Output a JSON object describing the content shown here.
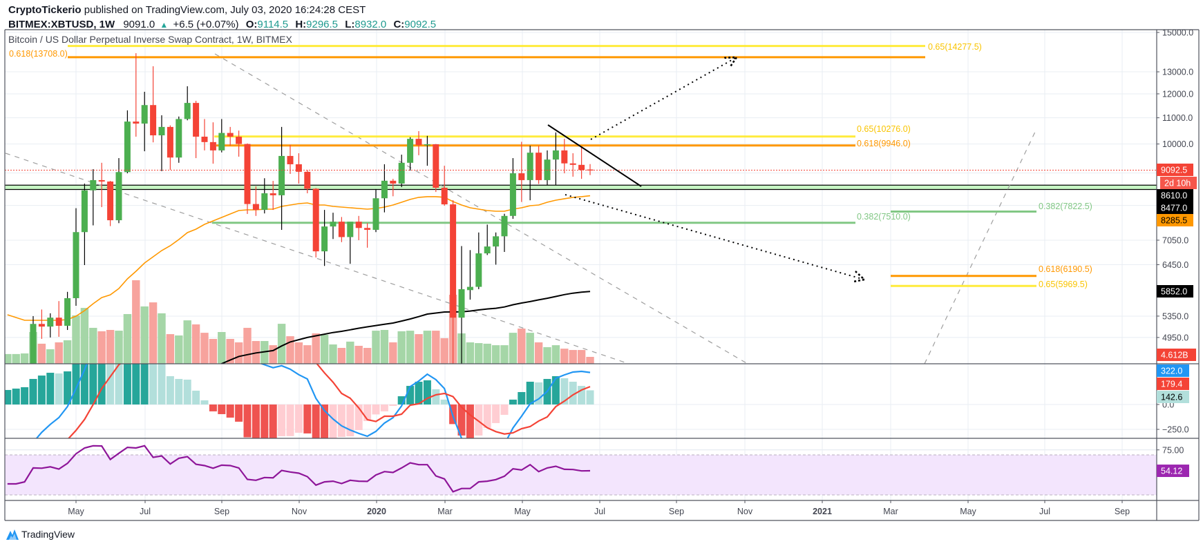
{
  "header": {
    "publisher": "CryptoTickerio",
    "published_text": "published on TradingView.com, July 03, 2020 16:24:28 CEST",
    "symbol": "BITMEX:XBTUSD, 1W",
    "last": "9091.0",
    "change": "+6.5 (+0.07%)",
    "o_label": "O:",
    "o": "9114.5",
    "h_label": "H:",
    "h": "9296.5",
    "l_label": "L:",
    "l": "8932.0",
    "c_label": "C:",
    "c": "9092.5"
  },
  "chart_title": "Bitcoin / US Dollar Perpetual Inverse Swap Contract, 1W, BITMEX",
  "footer": {
    "logo_text": "TradingView"
  },
  "colors": {
    "up": "#4caf50",
    "down": "#f44336",
    "vol_up": "#a5d6a7",
    "vol_down": "#f7a39d",
    "fib_yellow": "#ffeb3b",
    "fib_orange": "#ff9800",
    "fib_green": "#81c784",
    "zone_fill": "#c8f7c5",
    "ma_orange": "#ff9800",
    "ma_black": "#000000",
    "macd": "#2196f3",
    "signal": "#f44336",
    "hist_up_strong": "#26a69a",
    "hist_up_weak": "#b2dfdb",
    "hist_down_strong": "#ef5350",
    "hist_down_weak": "#ffcdd2",
    "rsi": "#8e1599",
    "rsi_band": "#f3e5fd"
  },
  "chart_data": {
    "type": "candlestick",
    "title": "Bitcoin / US Dollar Perpetual Inverse Swap Contract, 1W, BITMEX",
    "interval": "1W",
    "price_scale": "log",
    "ylim": [
      4500,
      15150
    ],
    "price_ticks": [
      "15000.0",
      "13000.0",
      "12000.0",
      "11000.0",
      "10000.0",
      "7050.0",
      "6450.0",
      "5350.0",
      "4950.0"
    ],
    "time_ticks": [
      "May",
      "Jul",
      "Sep",
      "Nov",
      "2020",
      "Mar",
      "May",
      "Jul",
      "Sep",
      "Nov",
      "2021",
      "Mar",
      "May",
      "Jul",
      "Sep"
    ],
    "candles_ohlc": [
      [
        3900,
        4000,
        3850,
        3970
      ],
      [
        3970,
        4050,
        3900,
        4010
      ],
      [
        4010,
        4160,
        3960,
        4150
      ],
      [
        4150,
        5350,
        4100,
        5200
      ],
      [
        5200,
        5480,
        4925,
        5150
      ],
      [
        5150,
        5405,
        4950,
        5320
      ],
      [
        5320,
        5650,
        4962,
        5165
      ],
      [
        5165,
        5843,
        5087,
        5710
      ],
      [
        5710,
        7920,
        5554,
        7260
      ],
      [
        7260,
        8660,
        6440,
        8450
      ],
      [
        8450,
        9126,
        7440,
        8770
      ],
      [
        8770,
        9340,
        7950,
        8725
      ],
      [
        8725,
        8745,
        7420,
        7580
      ],
      [
        7580,
        9500,
        7500,
        9030
      ],
      [
        9030,
        11300,
        8990,
        10850
      ],
      [
        10850,
        13910,
        10270,
        10770
      ],
      [
        10770,
        12090,
        9740,
        11520
      ],
      [
        11520,
        13265,
        10060,
        10320
      ],
      [
        10320,
        11100,
        9060,
        10640
      ],
      [
        10640,
        10700,
        9105,
        9520
      ],
      [
        9520,
        11050,
        9340,
        10950
      ],
      [
        10950,
        12335,
        10900,
        11610
      ],
      [
        11610,
        11700,
        9500,
        10270
      ],
      [
        10270,
        10950,
        9770,
        10070
      ],
      [
        10070,
        10820,
        9310,
        9770
      ],
      [
        9770,
        10950,
        9700,
        10410
      ],
      [
        10410,
        10640,
        9940,
        10270
      ],
      [
        10270,
        10500,
        9550,
        10000
      ],
      [
        10000,
        10020,
        7755,
        8040
      ],
      [
        8040,
        8572,
        7700,
        7870
      ],
      [
        7870,
        8830,
        7770,
        8360
      ],
      [
        8360,
        8745,
        7870,
        8300
      ],
      [
        8300,
        10640,
        7320,
        9575
      ],
      [
        9575,
        9970,
        8970,
        9290
      ],
      [
        9290,
        9670,
        8660,
        9040
      ],
      [
        9040,
        9105,
        8360,
        8500
      ],
      [
        8500,
        8520,
        6620,
        6770
      ],
      [
        6770,
        7870,
        6420,
        7410
      ],
      [
        7410,
        7790,
        7080,
        7540
      ],
      [
        7540,
        7670,
        7000,
        7130
      ],
      [
        7130,
        7520,
        6470,
        7540
      ],
      [
        7540,
        7700,
        7050,
        7370
      ],
      [
        7370,
        7500,
        6860,
        7320
      ],
      [
        7320,
        8490,
        7260,
        8210
      ],
      [
        8210,
        9290,
        7800,
        8750
      ],
      [
        8750,
        8810,
        8270,
        8660
      ],
      [
        8660,
        9620,
        8550,
        9340
      ],
      [
        9340,
        10250,
        9080,
        10190
      ],
      [
        10190,
        10480,
        9600,
        9960
      ],
      [
        9960,
        10300,
        9240,
        9990
      ],
      [
        9990,
        10000,
        8400,
        8530
      ],
      [
        8530,
        9240,
        7990,
        8030
      ],
      [
        8030,
        8150,
        3600,
        5320
      ],
      [
        5320,
        6900,
        4400,
        5900
      ],
      [
        5880,
        6800,
        5680,
        5950
      ],
      [
        5950,
        7250,
        5900,
        6720
      ],
      [
        6720,
        7460,
        6680,
        6890
      ],
      [
        6890,
        7250,
        6450,
        7150
      ],
      [
        7150,
        7760,
        6755,
        7700
      ],
      [
        7700,
        9500,
        7620,
        8990
      ],
      [
        8990,
        10080,
        8100,
        8770
      ],
      [
        8770,
        9940,
        8150,
        9690
      ],
      [
        9690,
        9940,
        8650,
        8770
      ],
      [
        8770,
        9770,
        8610,
        9450
      ],
      [
        9450,
        10430,
        8610,
        9770
      ],
      [
        9770,
        10190,
        8990,
        9320
      ],
      [
        9320,
        9670,
        8880,
        9270
      ],
      [
        9270,
        9890,
        8810,
        9100
      ],
      [
        9114.5,
        9296.5,
        8932,
        9092.5
      ]
    ],
    "volume_billions": [
      6.5,
      6.5,
      6.9,
      21.2,
      13.4,
      9.7,
      14.3,
      15.7,
      32.3,
      37.3,
      24.0,
      21.7,
      22.6,
      22.1,
      33.2,
      55.8,
      38.3,
      41.0,
      33.7,
      19.8,
      18.9,
      29.0,
      26.3,
      20.7,
      16.6,
      21.2,
      16.6,
      14.3,
      24.0,
      15.2,
      15.2,
      12.4,
      26.7,
      18.4,
      14.3,
      12.4,
      20.3,
      19.4,
      12.9,
      10.6,
      14.8,
      12.0,
      10.6,
      22.1,
      22.6,
      14.3,
      21.7,
      22.1,
      19.8,
      22.1,
      22.1,
      17.1,
      46.1,
      20.3,
      14.3,
      13.8,
      13.4,
      12.4,
      12.4,
      20.7,
      23.5,
      20.7,
      14.3,
      11.1,
      12.4,
      10.1,
      9.2,
      9.2,
      4.612
    ],
    "ma_orange": [
      5376,
      5322,
      5269,
      5269,
      5269,
      5269,
      5269,
      5282,
      5349,
      5457,
      5596,
      5723,
      5781,
      5914,
      6125,
      6297,
      6489,
      6637,
      6788,
      6909,
      7067,
      7246,
      7338,
      7468,
      7562,
      7658,
      7755,
      7853,
      7872,
      7872,
      7892,
      7892,
      7971,
      8012,
      8052,
      8072,
      8012,
      8012,
      7971,
      7951,
      7931,
      7912,
      7892,
      7912,
      7951,
      8012,
      8092,
      8175,
      8237,
      8258,
      8258,
      8237,
      8113,
      8012,
      7931,
      7892,
      7853,
      7833,
      7833,
      7892,
      7931,
      7991,
      8012,
      8092,
      8154,
      8196,
      8237,
      8258,
      8285.5
    ],
    "ma_black": [
      null,
      null,
      null,
      null,
      null,
      null,
      null,
      null,
      null,
      null,
      null,
      null,
      null,
      null,
      null,
      null,
      null,
      null,
      null,
      null,
      null,
      null,
      null,
      null,
      4420,
      4500,
      4560,
      4620,
      4650,
      4680,
      4700,
      4720,
      4800,
      4870,
      4910,
      4950,
      4980,
      5010,
      5040,
      5062,
      5090,
      5120,
      5145,
      5170,
      5195,
      5216,
      5255,
      5295,
      5340,
      5389,
      5410,
      5430,
      5432,
      5435,
      5450,
      5471,
      5490,
      5505,
      5530,
      5575,
      5610,
      5640,
      5675,
      5709,
      5745,
      5785,
      5815,
      5835,
      5852
    ],
    "price_tags": [
      {
        "text": "9092.5",
        "bg": "#f44336",
        "fg": "#ffffff"
      },
      {
        "text": "2d 10h",
        "bg": "#f6564b",
        "fg": "#ffffff"
      },
      {
        "text": "8610.0",
        "bg": "#000000",
        "fg": "#ffffff"
      },
      {
        "text": "8477.0",
        "bg": "#000000",
        "fg": "#ffffff"
      },
      {
        "text": "8285.5",
        "bg": "#ff9800",
        "fg": "#000000"
      },
      {
        "text": "5852.0",
        "bg": "#000000",
        "fg": "#ffffff"
      },
      {
        "text": "4.612B",
        "bg": "#f44336",
        "fg": "#ffffff"
      }
    ],
    "zone": [
      8477,
      8610
    ],
    "fib_levels": [
      {
        "label": "0.65(14277.5)",
        "value": 14277.5,
        "color": "#ffeb3b"
      },
      {
        "label": "0.618(13708.0)",
        "value": 13708,
        "color": "#ff9800"
      },
      {
        "label": "0.65(10276.0)",
        "value": 10276,
        "color": "#ffeb3b"
      },
      {
        "label": "0.618(9946.0)",
        "value": 9946,
        "color": "#ff9800"
      },
      {
        "label": "0.382(7510.0)",
        "value": 7510,
        "color": "#81c784"
      },
      {
        "label": "0.382(7822.5)",
        "value": 7822.5,
        "color": "#81c784"
      },
      {
        "label": "0.618(6190.5)",
        "value": 6190.5,
        "color": "#ff9800"
      },
      {
        "label": "0.65(5969.5)",
        "value": 5969.5,
        "color": "#ffeb3b"
      }
    ],
    "macd": {
      "ylim": [
        -340,
        410
      ],
      "ticks": [
        "0.0",
        "−250.0"
      ],
      "tags": [
        {
          "text": "322.0",
          "bg": "#2196f3",
          "fg": "#ffffff"
        },
        {
          "text": "179.4",
          "bg": "#f44336",
          "fg": "#ffffff"
        },
        {
          "text": "142.6",
          "bg": "#b2dfdb",
          "fg": "#000000"
        }
      ],
      "macd": [
        -640,
        -560,
        -480,
        -380,
        -280,
        -200,
        -132,
        -21,
        160,
        350,
        580,
        800,
        900,
        1000,
        1100,
        1200,
        1250,
        1200,
        1150,
        1060,
        1040,
        1050,
        950,
        860,
        750,
        720,
        680,
        630,
        460,
        430,
        400,
        370,
        390,
        355,
        300,
        257,
        62,
        -62,
        -146,
        -215,
        -257,
        -291,
        -319,
        -271,
        -187,
        -132,
        -14,
        180,
        236,
        305,
        250,
        160,
        -118,
        -340,
        -450,
        -480,
        -470,
        -460,
        -400,
        -236,
        -118,
        7,
        56,
        132,
        264,
        298,
        326,
        333,
        322
      ],
      "signal": [
        -786,
        -720,
        -654,
        -637,
        -571,
        -519,
        -444,
        -354,
        -260,
        -150,
        0,
        160,
        280,
        400,
        460,
        520,
        550,
        580,
        670,
        775,
        783,
        800,
        811,
        818,
        819,
        817,
        812,
        803,
        790,
        775,
        755,
        730,
        709,
        673,
        584,
        548,
        422,
        318,
        224,
        111,
        63,
        -34,
        -152,
        -171,
        -118,
        -118,
        -97,
        -7,
        7,
        62,
        97,
        111,
        79,
        -28,
        -105,
        -168,
        -234,
        -273,
        -296,
        -285,
        -243,
        -222,
        -166,
        -125,
        -21,
        34,
        97,
        146,
        179.4
      ],
      "histogram": [
        146,
        160,
        174,
        257,
        291,
        319,
        312,
        333,
        420,
        500,
        580,
        640,
        620,
        600,
        640,
        680,
        700,
        620,
        480,
        285,
        257,
        250,
        139,
        42,
        -69,
        -97,
        -132,
        -173,
        -330,
        -345,
        -355,
        -360,
        -319,
        -318,
        -284,
        -291,
        -360,
        -380,
        -370,
        -326,
        -320,
        -257,
        -167,
        -100,
        -69,
        -14,
        83,
        187,
        229,
        243,
        153,
        49,
        -197,
        -312,
        -345,
        -312,
        -236,
        -187,
        -104,
        49,
        125,
        229,
        222,
        257,
        285,
        264,
        229,
        187,
        142.6
      ]
    },
    "rsi": {
      "band": [
        30,
        70
      ],
      "ticks": [
        "75.00"
      ],
      "tag": {
        "text": "54.12",
        "bg": "#9c27b0",
        "fg": "#ffffff"
      },
      "values": [
        41.0,
        41.0,
        43.0,
        57.0,
        56.7,
        58.1,
        55.8,
        61.5,
        71.1,
        76.9,
        79.1,
        78.9,
        65.4,
        71.6,
        77.5,
        76.9,
        79.1,
        67.5,
        68.9,
        60.9,
        66.6,
        68.2,
        60.6,
        59.3,
        56.7,
        59.7,
        59.3,
        57.0,
        45.5,
        44.6,
        47.4,
        47.1,
        54.5,
        52.9,
        51.7,
        48.3,
        39.8,
        43.0,
        43.7,
        41.4,
        44.6,
        43.7,
        43.5,
        49.9,
        53.3,
        52.4,
        57.0,
        62.0,
        60.2,
        60.2,
        49.0,
        46.0,
        33.2,
        36.4,
        36.4,
        43.0,
        43.7,
        45.3,
        48.7,
        56.1,
        54.9,
        60.2,
        53.3,
        57.0,
        58.6,
        55.6,
        55.4,
        54.0,
        54.12
      ]
    }
  }
}
